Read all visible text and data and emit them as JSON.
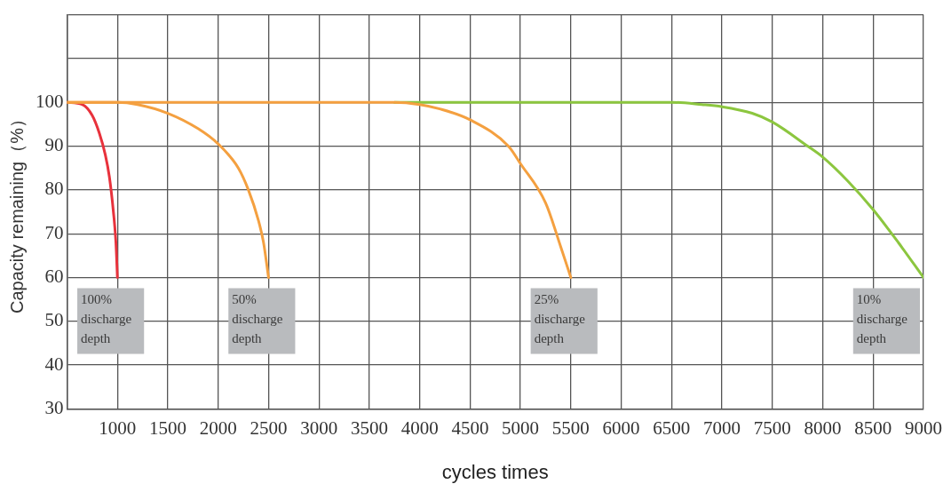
{
  "chart_data": {
    "type": "line",
    "xlabel": "cycles times",
    "ylabel": "Capacity remaining（%）",
    "xlim": [
      500,
      9000
    ],
    "xticks": [
      {
        "value": 500,
        "label": null
      },
      1000,
      1500,
      2000,
      2500,
      3000,
      3500,
      4000,
      4500,
      5000,
      5500,
      6000,
      6500,
      7000,
      7500,
      8000,
      8500,
      9000
    ],
    "ylim": [
      30,
      120
    ],
    "yticks": [
      30,
      40,
      50,
      60,
      70,
      80,
      90,
      100,
      {
        "value": 110,
        "label": null
      },
      {
        "value": 120,
        "label": null
      }
    ],
    "grid": true,
    "legend": false,
    "marker": "none",
    "line_style": "solid",
    "series": [
      {
        "color": "#f4a040",
        "x": [
          500,
          1000,
          3750,
          4000,
          4200,
          4500,
          4880,
          5000,
          5250,
          5400,
          5500
        ],
        "values": [
          100,
          100,
          100,
          99.5,
          98.5,
          96,
          90,
          86,
          77,
          67,
          60
        ]
      },
      {
        "color": "#f4a040",
        "x": [
          500,
          1000,
          1200,
          1500,
          1800,
          2000,
          2200,
          2300,
          2400,
          2450,
          2500
        ],
        "values": [
          100,
          100,
          99.5,
          97.5,
          94,
          90.5,
          85,
          80,
          73,
          68,
          60
        ]
      },
      {
        "color": "#e8323c",
        "x": [
          500,
          650,
          750,
          820,
          880,
          920,
          960,
          985,
          1000
        ],
        "values": [
          100,
          99.5,
          97,
          93,
          88,
          83,
          75,
          68,
          60
        ]
      },
      {
        "color": "#8cc63f",
        "x": [
          3750,
          5000,
          6500,
          6800,
          7000,
          7300,
          7500,
          7850,
          8000,
          8250,
          8500,
          8750,
          9000
        ],
        "values": [
          100,
          100,
          100,
          99.5,
          99,
          97.5,
          95.5,
          90,
          87.5,
          82,
          75.5,
          68,
          60
        ]
      }
    ],
    "annotations": [
      {
        "text": "100%\ndischarge\ndepth",
        "x": 1000,
        "y": 60
      },
      {
        "text": "50%\ndischarge\ndepth",
        "x": 2500,
        "y": 60
      },
      {
        "text": "25%\ndischarge\ndepth",
        "x": 5500,
        "y": 60
      },
      {
        "text": "10%\ndischarge\ndepth",
        "x": 9000,
        "y": 60
      }
    ]
  }
}
